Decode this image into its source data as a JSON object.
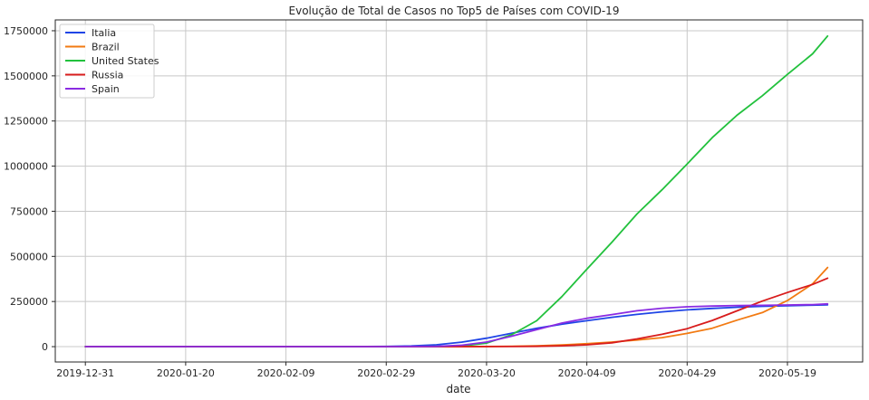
{
  "chart_data": {
    "type": "line",
    "title": "Evolução de Total de Casos no Top5 de Países com COVID-19",
    "xlabel": "date",
    "ylabel": "",
    "x_start": "2019-12-31",
    "x_end": "2020-05-27",
    "xlim": [
      "2019-12-25",
      "2020-06-03"
    ],
    "ylim": [
      -85000,
      1810000
    ],
    "x_ticks": [
      "2019-12-31",
      "2020-01-20",
      "2020-02-09",
      "2020-02-29",
      "2020-03-20",
      "2020-04-09",
      "2020-04-29",
      "2020-05-19"
    ],
    "y_ticks": [
      0,
      250000,
      500000,
      750000,
      1000000,
      1250000,
      1500000,
      1750000
    ],
    "grid": true,
    "legend_position": "top-left",
    "series": [
      {
        "name": "Italia",
        "color": "#1f45e6",
        "points": [
          [
            "2019-12-31",
            0
          ],
          [
            "2020-02-20",
            0
          ],
          [
            "2020-02-29",
            1100
          ],
          [
            "2020-03-05",
            3900
          ],
          [
            "2020-03-10",
            10100
          ],
          [
            "2020-03-15",
            24700
          ],
          [
            "2020-03-20",
            47000
          ],
          [
            "2020-03-25",
            74400
          ],
          [
            "2020-03-30",
            101700
          ],
          [
            "2020-04-04",
            124600
          ],
          [
            "2020-04-09",
            143600
          ],
          [
            "2020-04-14",
            162500
          ],
          [
            "2020-04-19",
            178900
          ],
          [
            "2020-04-24",
            192900
          ],
          [
            "2020-04-29",
            203600
          ],
          [
            "2020-05-04",
            211900
          ],
          [
            "2020-05-09",
            218300
          ],
          [
            "2020-05-14",
            223100
          ],
          [
            "2020-05-19",
            226700
          ],
          [
            "2020-05-24",
            229900
          ],
          [
            "2020-05-27",
            231100
          ]
        ]
      },
      {
        "name": "Brazil",
        "color": "#f27a12",
        "points": [
          [
            "2019-12-31",
            0
          ],
          [
            "2020-03-01",
            0
          ],
          [
            "2020-03-15",
            200
          ],
          [
            "2020-03-20",
            900
          ],
          [
            "2020-03-25",
            2400
          ],
          [
            "2020-03-30",
            4600
          ],
          [
            "2020-04-04",
            9100
          ],
          [
            "2020-04-09",
            16200
          ],
          [
            "2020-04-14",
            25300
          ],
          [
            "2020-04-19",
            36600
          ],
          [
            "2020-04-24",
            50000
          ],
          [
            "2020-04-29",
            73200
          ],
          [
            "2020-05-04",
            101800
          ],
          [
            "2020-05-09",
            146900
          ],
          [
            "2020-05-14",
            188900
          ],
          [
            "2020-05-19",
            255400
          ],
          [
            "2020-05-24",
            347400
          ],
          [
            "2020-05-27",
            438200
          ]
        ]
      },
      {
        "name": "United States",
        "color": "#22c13d",
        "points": [
          [
            "2019-12-31",
            0
          ],
          [
            "2020-03-01",
            100
          ],
          [
            "2020-03-10",
            1000
          ],
          [
            "2020-03-15",
            3500
          ],
          [
            "2020-03-20",
            19100
          ],
          [
            "2020-03-25",
            65800
          ],
          [
            "2020-03-30",
            143500
          ],
          [
            "2020-04-04",
            277200
          ],
          [
            "2020-04-09",
            429000
          ],
          [
            "2020-04-14",
            579000
          ],
          [
            "2020-04-19",
            735000
          ],
          [
            "2020-04-24",
            869000
          ],
          [
            "2020-04-29",
            1012000
          ],
          [
            "2020-05-04",
            1158000
          ],
          [
            "2020-05-09",
            1283000
          ],
          [
            "2020-05-14",
            1390000
          ],
          [
            "2020-05-19",
            1508000
          ],
          [
            "2020-05-24",
            1622000
          ],
          [
            "2020-05-27",
            1721000
          ]
        ]
      },
      {
        "name": "Russia",
        "color": "#d81c1c",
        "points": [
          [
            "2019-12-31",
            0
          ],
          [
            "2020-03-15",
            0
          ],
          [
            "2020-03-25",
            700
          ],
          [
            "2020-03-30",
            1800
          ],
          [
            "2020-04-04",
            4700
          ],
          [
            "2020-04-09",
            10100
          ],
          [
            "2020-04-14",
            21100
          ],
          [
            "2020-04-19",
            42900
          ],
          [
            "2020-04-24",
            68600
          ],
          [
            "2020-04-29",
            99400
          ],
          [
            "2020-05-04",
            145300
          ],
          [
            "2020-05-09",
            198700
          ],
          [
            "2020-05-14",
            252200
          ],
          [
            "2020-05-19",
            299900
          ],
          [
            "2020-05-24",
            344500
          ],
          [
            "2020-05-27",
            379000
          ]
        ]
      },
      {
        "name": "Spain",
        "color": "#8a2be2",
        "points": [
          [
            "2019-12-31",
            0
          ],
          [
            "2020-03-01",
            100
          ],
          [
            "2020-03-10",
            1700
          ],
          [
            "2020-03-15",
            7800
          ],
          [
            "2020-03-20",
            25400
          ],
          [
            "2020-03-25",
            58000
          ],
          [
            "2020-03-30",
            94400
          ],
          [
            "2020-04-04",
            130800
          ],
          [
            "2020-04-09",
            157000
          ],
          [
            "2020-04-14",
            177600
          ],
          [
            "2020-04-19",
            198700
          ],
          [
            "2020-04-24",
            213000
          ],
          [
            "2020-04-29",
            221000
          ],
          [
            "2020-05-04",
            225000
          ],
          [
            "2020-05-09",
            228000
          ],
          [
            "2020-05-14",
            229000
          ],
          [
            "2020-05-19",
            231000
          ],
          [
            "2020-05-24",
            233000
          ],
          [
            "2020-05-27",
            237000
          ]
        ]
      }
    ]
  }
}
